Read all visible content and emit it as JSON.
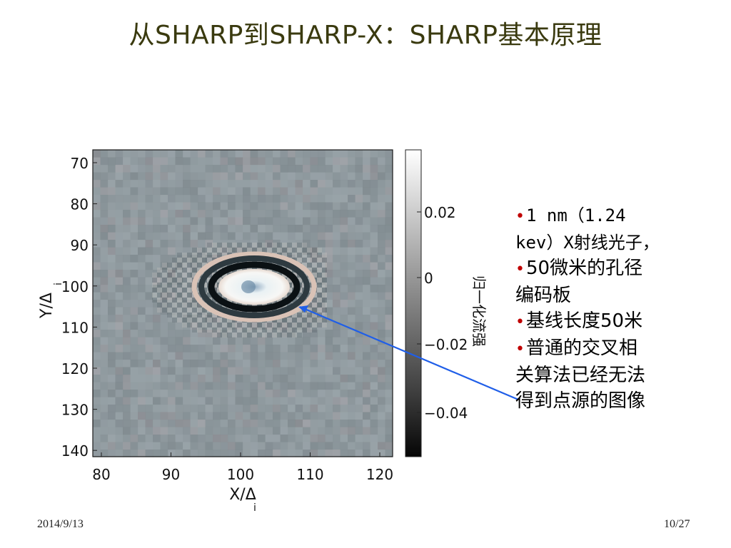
{
  "slide": {
    "title": "从SHARP到SHARP-X：SHARP基本原理",
    "footer_date": "2014/9/13",
    "footer_page": "10/27"
  },
  "figure": {
    "y_ticks": [
      "70",
      "80",
      "90",
      "100",
      "110",
      "120",
      "130",
      "140"
    ],
    "x_ticks": [
      "80",
      "90",
      "100",
      "110",
      "120"
    ],
    "y_label": "Y/Δ",
    "y_label_sub": "i",
    "x_label": "X/Δ",
    "x_label_sub": "i",
    "colorbar_ticks": [
      "0.02",
      "0",
      "−0.02",
      "−0.04"
    ],
    "colorbar_label": "归一化流强",
    "arrow_color": "#1f5ee8"
  },
  "bullets": [
    {
      "text": "1 nm（1.24\nkev）X射线光子，",
      "mono": true
    },
    {
      "text": "50微米的孔径\n编码板",
      "mono": false
    },
    {
      "text": "基线长度50米",
      "mono": false
    },
    {
      "text": "普通的交叉相\n关算法已经无法\n得到点源的图像",
      "mono": false
    }
  ]
}
